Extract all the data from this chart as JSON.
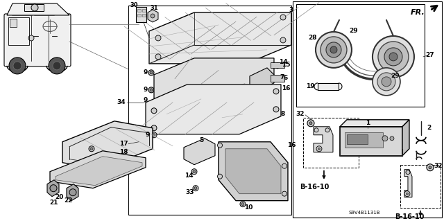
{
  "bg_color": "#ffffff",
  "fig_width": 6.4,
  "fig_height": 3.19,
  "dpi": 100,
  "diagram_code": "S9V4B1131B",
  "fr_label": "FR.",
  "b1610_label": "B-16-10",
  "gray_light": "#e8e8e8",
  "gray_med": "#cccccc",
  "gray_dark": "#888888",
  "black": "#000000",
  "line_color": "#222222"
}
